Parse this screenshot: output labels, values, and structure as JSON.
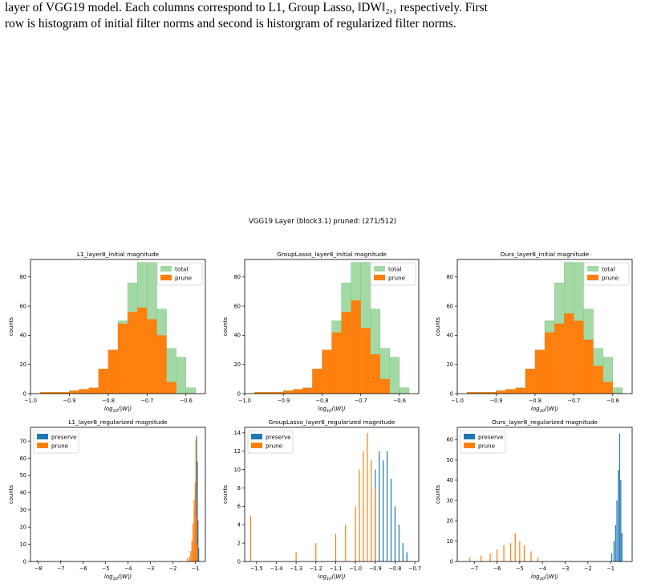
{
  "caption": {
    "line1": "layer of VGG19 model. Each columns correspond to L1, Group Lasso, ‖DW‖₂,₁ respectively. First",
    "line2": "row is histogram of initial filter norms and second is historgram of regularized filter norms."
  },
  "figure": {
    "suptitle": "VGG19 Layer (block3.1) pruned: (271/512)"
  },
  "colors": {
    "total": "#a3d9a4",
    "prune_top": "#ff7f0e",
    "preserve": "#1f77b4",
    "prune": "#ff7f0e"
  },
  "chart_data": [
    {
      "type": "bar",
      "title": "L1_layer8_initial magnitude",
      "xlabel": "log10(|W|)",
      "ylabel": "counts",
      "xlim": [
        -1.0,
        -0.55
      ],
      "ylim": [
        0,
        92
      ],
      "xticks": [
        "-1.0",
        "-0.9",
        "-0.8",
        "-0.7",
        "-0.6"
      ],
      "yticks": [
        "0",
        "20",
        "40",
        "60",
        "80"
      ],
      "bin_edges": [
        -0.975,
        -0.95,
        -0.925,
        -0.9,
        -0.875,
        -0.85,
        -0.825,
        -0.8,
        -0.775,
        -0.75,
        -0.725,
        -0.7,
        -0.675,
        -0.65,
        -0.625,
        -0.6,
        -0.575
      ],
      "series": [
        {
          "name": "total",
          "values": [
            1,
            1,
            1,
            2,
            3,
            4,
            17,
            30,
            50,
            76,
            90,
            90,
            58,
            31,
            25,
            4
          ]
        },
        {
          "name": "prune",
          "values": [
            1,
            1,
            1,
            2,
            3,
            4,
            17,
            30,
            48,
            56,
            59,
            51,
            40,
            8,
            0,
            0
          ]
        }
      ],
      "legend": "upper right"
    },
    {
      "type": "bar",
      "title": "GroupLasso_layer8_initial magnitude",
      "xlabel": "log10(|W|)",
      "ylabel": "counts",
      "xlim": [
        -1.0,
        -0.55
      ],
      "ylim": [
        0,
        92
      ],
      "xticks": [
        "-1.0",
        "-0.9",
        "-0.8",
        "-0.7",
        "-0.6"
      ],
      "yticks": [
        "0",
        "20",
        "40",
        "60",
        "80"
      ],
      "bin_edges": [
        -0.975,
        -0.95,
        -0.925,
        -0.9,
        -0.875,
        -0.85,
        -0.825,
        -0.8,
        -0.775,
        -0.75,
        -0.725,
        -0.7,
        -0.675,
        -0.65,
        -0.625,
        -0.6,
        -0.575
      ],
      "series": [
        {
          "name": "total",
          "values": [
            1,
            1,
            1,
            2,
            3,
            4,
            17,
            30,
            50,
            76,
            90,
            90,
            58,
            31,
            25,
            4
          ]
        },
        {
          "name": "prune",
          "values": [
            1,
            1,
            1,
            2,
            3,
            4,
            17,
            30,
            42,
            56,
            64,
            45,
            27,
            10,
            0,
            0
          ]
        }
      ],
      "legend": "upper right"
    },
    {
      "type": "bar",
      "title": "Ours_layer8_initial magnitude",
      "xlabel": "log10(|W|)",
      "ylabel": "counts",
      "xlim": [
        -1.0,
        -0.55
      ],
      "ylim": [
        0,
        92
      ],
      "xticks": [
        "-1.0",
        "-0.9",
        "-0.8",
        "-0.7",
        "-0.6"
      ],
      "yticks": [
        "0",
        "20",
        "40",
        "60",
        "80"
      ],
      "bin_edges": [
        -0.975,
        -0.95,
        -0.925,
        -0.9,
        -0.875,
        -0.85,
        -0.825,
        -0.8,
        -0.775,
        -0.75,
        -0.725,
        -0.7,
        -0.675,
        -0.65,
        -0.625,
        -0.6,
        -0.575
      ],
      "series": [
        {
          "name": "total",
          "values": [
            1,
            1,
            1,
            2,
            3,
            4,
            17,
            30,
            50,
            76,
            90,
            90,
            58,
            31,
            25,
            4
          ]
        },
        {
          "name": "prune",
          "values": [
            1,
            1,
            1,
            2,
            3,
            4,
            17,
            30,
            42,
            48,
            55,
            50,
            37,
            19,
            8,
            0
          ]
        }
      ],
      "legend": "upper right"
    },
    {
      "type": "bar",
      "title": "L1_layer8_regularized magnitude",
      "xlabel": "log10(|W|)",
      "ylabel": "counts",
      "xlim": [
        -8.35,
        -0.55
      ],
      "ylim": [
        0,
        78
      ],
      "xticks": [
        "-8",
        "-7",
        "-6",
        "-5",
        "-4",
        "-3",
        "-2",
        "-1"
      ],
      "yticks": [
        "0",
        "10",
        "20",
        "30",
        "40",
        "50",
        "60",
        "70"
      ],
      "series": [
        {
          "name": "preserve",
          "peaks": [
            [
              -1.1,
              6
            ],
            [
              -1.05,
              14
            ],
            [
              -1.0,
              30
            ],
            [
              -0.97,
              46
            ],
            [
              -0.94,
              73
            ],
            [
              -0.91,
              58
            ],
            [
              -0.88,
              24
            ],
            [
              -0.85,
              8
            ]
          ]
        },
        {
          "name": "prune",
          "peaks": [
            [
              -8.05,
              1
            ],
            [
              -7.0,
              1
            ],
            [
              -1.35,
              2
            ],
            [
              -1.25,
              3
            ],
            [
              -1.2,
              6
            ],
            [
              -1.15,
              12
            ],
            [
              -1.1,
              22
            ],
            [
              -1.05,
              36
            ],
            [
              -1.0,
              46
            ],
            [
              -0.97,
              71
            ],
            [
              -0.94,
              26
            ],
            [
              -0.91,
              10
            ]
          ]
        }
      ],
      "legend": "upper left"
    },
    {
      "type": "bar",
      "title": "GroupLasso_layer8_regularized magnitude",
      "xlabel": "log10(|W|)",
      "ylabel": "counts",
      "xlim": [
        -1.56,
        -0.68
      ],
      "ylim": [
        0,
        14.6
      ],
      "xticks": [
        "-1.5",
        "-1.4",
        "-1.3",
        "-1.2",
        "-1.1",
        "-1.0",
        "-0.9",
        "-0.8",
        "-0.7"
      ],
      "yticks": [
        "0",
        "2",
        "4",
        "6",
        "8",
        "10",
        "12",
        "14"
      ],
      "series": [
        {
          "name": "preserve",
          "peaks": [
            [
              -0.9,
              10
            ],
            [
              -0.88,
              12
            ],
            [
              -0.86,
              11
            ],
            [
              -0.84,
              12
            ],
            [
              -0.82,
              9
            ],
            [
              -0.8,
              6
            ],
            [
              -0.78,
              4
            ],
            [
              -0.76,
              2
            ],
            [
              -0.74,
              1
            ]
          ]
        },
        {
          "name": "prune",
          "peaks": [
            [
              -1.53,
              5
            ],
            [
              -1.3,
              1
            ],
            [
              -1.2,
              2
            ],
            [
              -1.1,
              3
            ],
            [
              -1.05,
              4
            ],
            [
              -1.0,
              6
            ],
            [
              -0.98,
              10
            ],
            [
              -0.96,
              12
            ],
            [
              -0.94,
              14
            ],
            [
              -0.92,
              11
            ],
            [
              -0.9,
              8
            ]
          ]
        }
      ],
      "legend": "upper left"
    },
    {
      "type": "bar",
      "title": "Ours_layer8_regularized magnitude",
      "xlabel": "log10(|W|)",
      "ylabel": "counts",
      "xlim": [
        -7.75,
        -0.05
      ],
      "ylim": [
        0,
        66
      ],
      "xticks": [
        "-7",
        "-6",
        "-5",
        "-4",
        "-3",
        "-2",
        "-1"
      ],
      "yticks": [
        "0",
        "10",
        "20",
        "30",
        "40",
        "50",
        "60"
      ],
      "series": [
        {
          "name": "preserve",
          "peaks": [
            [
              -0.95,
              4
            ],
            [
              -0.85,
              10
            ],
            [
              -0.78,
              18
            ],
            [
              -0.72,
              30
            ],
            [
              -0.66,
              45
            ],
            [
              -0.6,
              63
            ],
            [
              -0.55,
              40
            ],
            [
              -0.5,
              14
            ]
          ]
        },
        {
          "name": "prune",
          "peaks": [
            [
              -7.2,
              2
            ],
            [
              -6.7,
              3
            ],
            [
              -6.3,
              4
            ],
            [
              -6.0,
              6
            ],
            [
              -5.7,
              8
            ],
            [
              -5.4,
              9
            ],
            [
              -5.2,
              14
            ],
            [
              -5.0,
              10
            ],
            [
              -4.8,
              8
            ],
            [
              -4.5,
              5
            ],
            [
              -4.2,
              2
            ]
          ]
        }
      ],
      "legend": "upper left"
    }
  ]
}
